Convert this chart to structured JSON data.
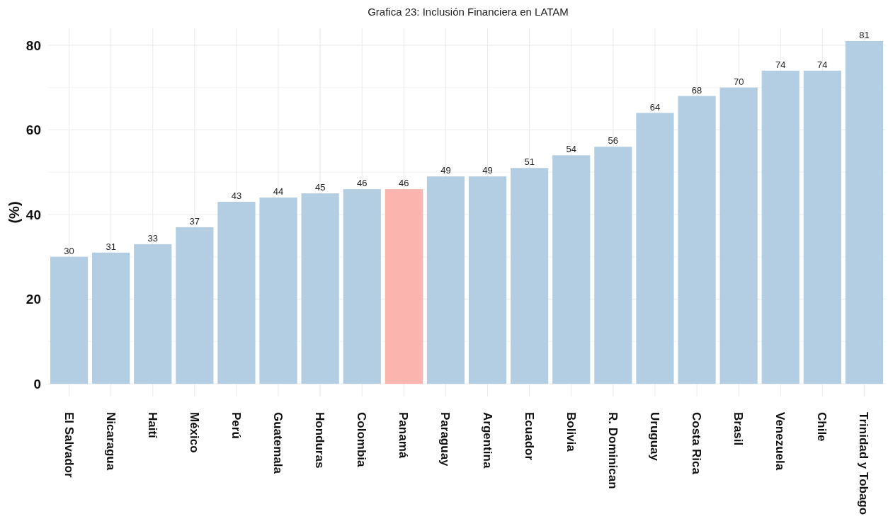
{
  "chart_data": {
    "type": "bar",
    "title": "Grafica 23:  Inclusión Financiera en LATAM",
    "ylabel": "(%)",
    "categories": [
      "El Salvador",
      "Nicaragua",
      "Haití",
      "México",
      "Perú",
      "Guatemala",
      "Honduras",
      "Colombia",
      "Panamá",
      "Paraguay",
      "Argentina",
      "Ecuador",
      "Bolivia",
      "R. Dominican",
      "Uruguay",
      "Costa Rica",
      "Brasil",
      "Venezuela",
      "Chile",
      "Trinidad y Tobago"
    ],
    "values": [
      30,
      31,
      33,
      37,
      43,
      44,
      45,
      46,
      46,
      49,
      49,
      51,
      54,
      56,
      64,
      68,
      70,
      74,
      74,
      81
    ],
    "colors": [
      "#b3cde3",
      "#b3cde3",
      "#b3cde3",
      "#b3cde3",
      "#b3cde3",
      "#b3cde3",
      "#b3cde3",
      "#b3cde3",
      "#fbb4ae",
      "#b3cde3",
      "#b3cde3",
      "#b3cde3",
      "#b3cde3",
      "#b3cde3",
      "#b3cde3",
      "#b3cde3",
      "#b3cde3",
      "#b3cde3",
      "#b3cde3",
      "#b3cde3"
    ],
    "ylim": [
      -3,
      84
    ],
    "yticks": [
      0,
      {
        "value": 10,
        "label": null
      },
      20,
      {
        "value": 30,
        "label": null
      },
      40,
      {
        "value": 50,
        "label": null
      },
      60,
      {
        "value": 70,
        "label": null
      },
      80
    ],
    "grid": true,
    "data_labels": true
  }
}
